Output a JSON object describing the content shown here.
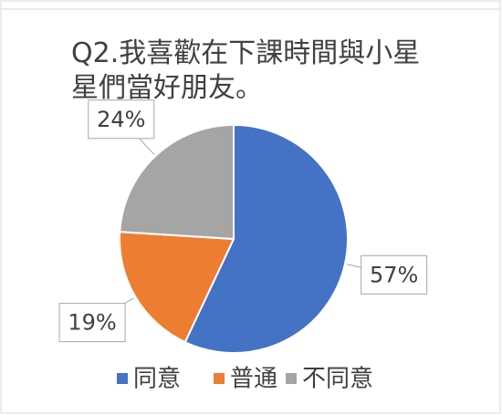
{
  "chart_data": {
    "type": "pie",
    "title": "Q2.我喜歡在下課時間與小星星們當好朋友。",
    "categories": [
      "同意",
      "普通",
      "不同意"
    ],
    "values": [
      57,
      19,
      24
    ],
    "value_labels": [
      "57%",
      "19%",
      "24%"
    ],
    "colors": [
      "#4472c4",
      "#ed7d31",
      "#a5a5a5"
    ],
    "legend": "bottom"
  }
}
